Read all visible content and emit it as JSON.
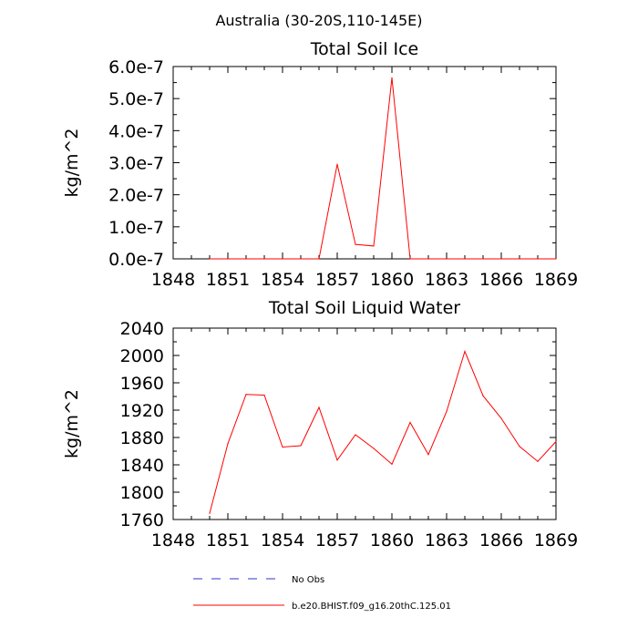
{
  "title": "Australia (30-20S,110-145E)",
  "chart_data": [
    {
      "type": "line",
      "title": "Total Soil Ice",
      "ylabel": "kg/m^2",
      "xlabel": "",
      "xlim": [
        1848,
        1869
      ],
      "ylim": [
        0,
        6e-07
      ],
      "x_ticks": [
        1848,
        1851,
        1854,
        1857,
        1860,
        1863,
        1866,
        1869
      ],
      "x_tick_labels": [
        "1848",
        "1851",
        "1854",
        "1857",
        "1860",
        "1863",
        "1866",
        "1869"
      ],
      "y_ticks": [
        0,
        1e-07,
        2e-07,
        3e-07,
        4e-07,
        5e-07,
        6e-07
      ],
      "y_tick_labels": [
        "0.0e-7",
        "1.0e-7",
        "2.0e-7",
        "3.0e-7",
        "4.0e-7",
        "5.0e-7",
        "6.0e-7"
      ],
      "grid": false,
      "series": [
        {
          "name": "b.e20.BHIST.f09_g16.20thC.125.01",
          "color": "#ff0000",
          "x": [
            1850,
            1851,
            1852,
            1853,
            1854,
            1855,
            1856,
            1857,
            1858,
            1859,
            1860,
            1861,
            1862,
            1863,
            1864,
            1865,
            1866,
            1867,
            1868,
            1869
          ],
          "y": [
            0,
            0,
            0,
            0,
            0,
            0,
            0,
            2.95e-07,
            4.5e-08,
            4e-08,
            5.65e-07,
            0,
            0,
            0,
            0,
            0,
            0,
            0,
            0,
            0
          ]
        }
      ]
    },
    {
      "type": "line",
      "title": "Total Soil Liquid Water",
      "ylabel": "kg/m^2",
      "xlabel": "",
      "xlim": [
        1848,
        1869
      ],
      "ylim": [
        1760,
        2040
      ],
      "x_ticks": [
        1848,
        1851,
        1854,
        1857,
        1860,
        1863,
        1866,
        1869
      ],
      "x_tick_labels": [
        "1848",
        "1851",
        "1854",
        "1857",
        "1860",
        "1863",
        "1866",
        "1869"
      ],
      "y_ticks": [
        1760,
        1800,
        1840,
        1880,
        1920,
        1960,
        2000,
        2040
      ],
      "y_tick_labels": [
        "1760",
        "1800",
        "1840",
        "1880",
        "1920",
        "1960",
        "2000",
        "2040"
      ],
      "grid": false,
      "series": [
        {
          "name": "b.e20.BHIST.f09_g16.20thC.125.01",
          "color": "#ff0000",
          "x": [
            1850,
            1851,
            1852,
            1853,
            1854,
            1855,
            1856,
            1857,
            1858,
            1859,
            1860,
            1861,
            1862,
            1863,
            1864,
            1865,
            1866,
            1867,
            1868,
            1869
          ],
          "y": [
            1769,
            1871,
            1943,
            1942,
            1866,
            1868,
            1924,
            1847,
            1884,
            1864,
            1841,
            1902,
            1855,
            1918,
            2006,
            1941,
            1908,
            1867,
            1845,
            1874
          ]
        }
      ]
    }
  ],
  "legend": {
    "placement": "bottom",
    "items": [
      {
        "label": "No Obs",
        "color": "#3333cc",
        "style": "dashed"
      },
      {
        "label": "b.e20.BHIST.f09_g16.20thC.125.01",
        "color": "#ff0000",
        "style": "solid"
      }
    ]
  }
}
